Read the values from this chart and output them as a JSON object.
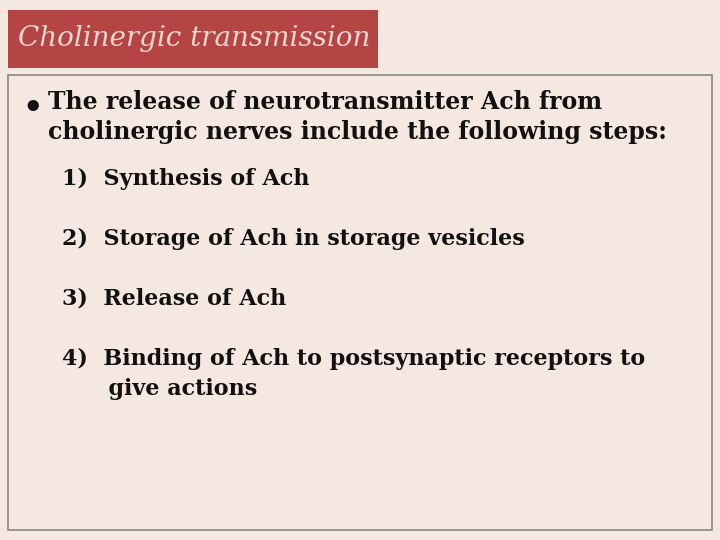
{
  "title": "Cholinergic transmission",
  "title_bg_color": "#b54545",
  "title_text_color": "#f0d8d0",
  "slide_bg_color": "#f5e8e0",
  "box_border_color": "#888888",
  "text_color": "#111111",
  "bullet_line1": "The release of neurotransmitter Ach from",
  "bullet_line2": "cholinergic nerves include the following steps:",
  "item1": "1)  Synthesis of Ach",
  "item2": "2)  Storage of Ach in storage vesicles",
  "item3": "3)  Release of Ach",
  "item4a": "4)  Binding of Ach to postsynaptic receptors to",
  "item4b": "      give actions",
  "font_size_title": 20,
  "font_size_bullet": 17,
  "font_size_items": 16
}
